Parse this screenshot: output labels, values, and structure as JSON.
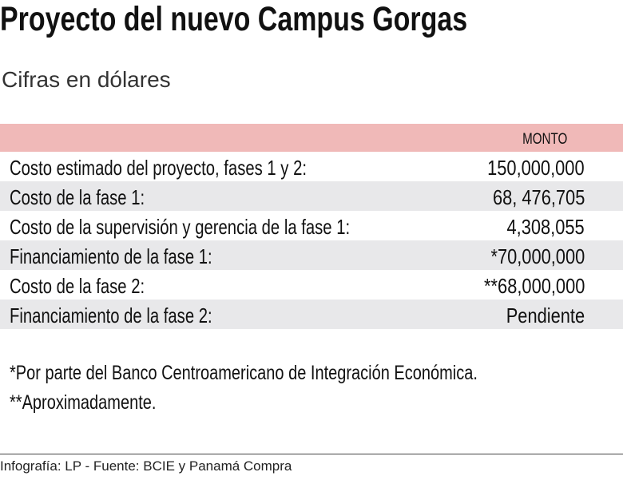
{
  "header": {
    "title": "Proyecto del nuevo Campus Gorgas",
    "subtitle": "Cifras en dólares"
  },
  "table": {
    "columns": [
      "MONTO"
    ],
    "rows": [
      [
        "Costo estimado del proyecto, fases 1 y 2:",
        "150,000,000"
      ],
      [
        "Costo de la fase 1:",
        "68, 476,705"
      ],
      [
        "Costo de la supervisión y gerencia de la fase 1:",
        "4,308,055"
      ],
      [
        "Financiamiento de la fase 1:",
        "*70,000,000"
      ],
      [
        "Costo de la fase 2:",
        "**68,000,000"
      ],
      [
        "Financiamiento de la fase 2:",
        "Pendiente"
      ]
    ]
  },
  "notes": [
    "*Por parte del Banco Centroamericano de Integración Económica.",
    "**Aproximadamente."
  ],
  "footer": "Infografía: LP - Fuente: BCIE y Panamá Compra"
}
